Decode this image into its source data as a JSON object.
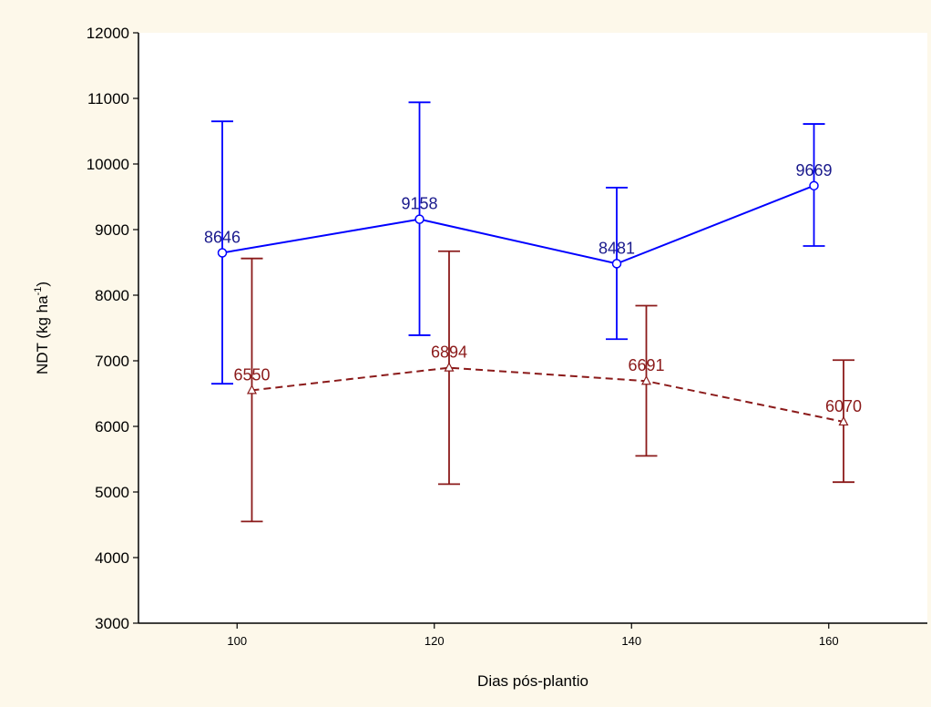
{
  "chart_data": {
    "type": "line",
    "xlabel": "Dias pós-plantio",
    "ylabel": "NDT (kg ha",
    "ylabel_superscript": "-1",
    "ylabel_suffix": ")",
    "xlim": [
      90,
      170
    ],
    "ylim": [
      3000,
      12000
    ],
    "x_ticks": [
      100,
      120,
      140,
      160
    ],
    "y_ticks": [
      3000,
      4000,
      5000,
      6000,
      7000,
      8000,
      9000,
      10000,
      11000,
      12000
    ],
    "grid": false,
    "series": [
      {
        "color": "#0000ff",
        "line_style": "solid",
        "marker": "circle",
        "label_color": "#1a1a8c",
        "points": [
          {
            "x": 98.5,
            "y": 8646,
            "label": "8646",
            "err_low": 6650,
            "err_high": 10650
          },
          {
            "x": 118.5,
            "y": 9158,
            "label": "9158",
            "err_low": 7390,
            "err_high": 10940
          },
          {
            "x": 138.5,
            "y": 8481,
            "label": "8481",
            "err_low": 7330,
            "err_high": 9640
          },
          {
            "x": 158.5,
            "y": 9669,
            "label": "9669",
            "err_low": 8750,
            "err_high": 10610
          }
        ]
      },
      {
        "color": "#8b1a1a",
        "line_style": "dashed",
        "marker": "triangle",
        "label_color": "#8b1a1a",
        "points": [
          {
            "x": 101.5,
            "y": 6550,
            "label": "6550",
            "err_low": 4550,
            "err_high": 8560
          },
          {
            "x": 121.5,
            "y": 6894,
            "label": "6894",
            "err_low": 5120,
            "err_high": 8670
          },
          {
            "x": 141.5,
            "y": 6691,
            "label": "6691",
            "err_low": 5550,
            "err_high": 7840
          },
          {
            "x": 161.5,
            "y": 6070,
            "label": "6070",
            "err_low": 5150,
            "err_high": 7010
          }
        ]
      }
    ]
  }
}
